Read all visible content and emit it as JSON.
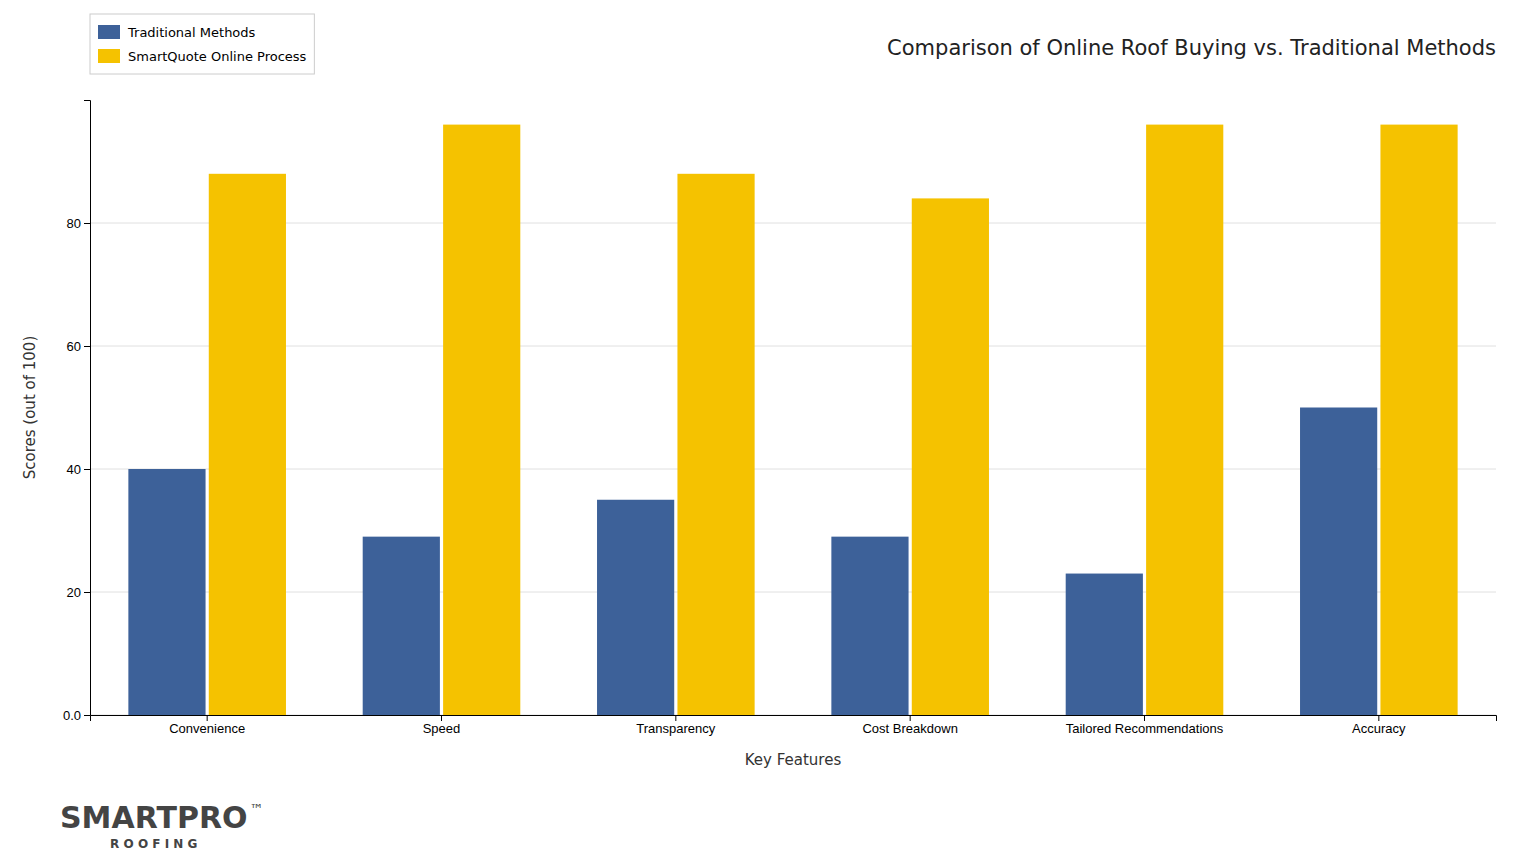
{
  "chart_data": {
    "type": "bar",
    "title": "Comparison of Online Roof Buying vs. Traditional Methods",
    "xlabel": "Key Features",
    "ylabel": "Scores (out of 100)",
    "categories": [
      "Convenience",
      "Speed",
      "Transparency",
      "Cost Breakdown",
      "Tailored Recommendations",
      "Accuracy"
    ],
    "series": [
      {
        "name": "Traditional Methods",
        "color": "#3d6199",
        "values": [
          40,
          29,
          35,
          29,
          23,
          50
        ]
      },
      {
        "name": "SmartQuote Online Process",
        "color": "#f5c200",
        "values": [
          88,
          96,
          88,
          84,
          96,
          96
        ]
      }
    ],
    "ylim": [
      0,
      100
    ],
    "yticks": [
      {
        "value": 0,
        "label": "0.0"
      },
      20,
      40,
      60,
      80
    ],
    "grid": true,
    "legend": "upper left",
    "annotations": [
      "SMARTPRO",
      "™",
      "R O O F I N G"
    ]
  }
}
